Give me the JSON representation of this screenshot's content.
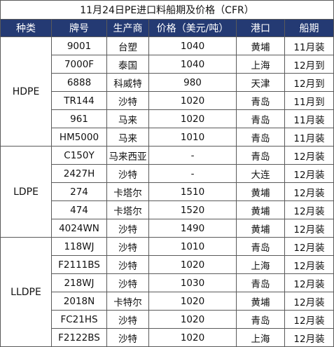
{
  "title": "11月24日PE进口料船期及价格（CFR）",
  "headers": [
    "种类",
    "牌号",
    "生产商",
    "价格（美元/吨）",
    "港口",
    "船期"
  ],
  "colors": {
    "header_bg": "#243a73",
    "header_text": "#ffffff",
    "border": "#5a5a5a"
  },
  "groups": [
    {
      "category": "HDPE",
      "rows": [
        {
          "grade": "9001",
          "producer": "台塑",
          "price": "1040",
          "port": "黄埔",
          "shipping": "11月装"
        },
        {
          "grade": "7000F",
          "producer": "泰国",
          "price": "1040",
          "port": "上海",
          "shipping": "12月到"
        },
        {
          "grade": "6888",
          "producer": "科威特",
          "price": "980",
          "port": "天津",
          "shipping": "12月到"
        },
        {
          "grade": "TR144",
          "producer": "沙特",
          "price": "1020",
          "port": "青岛",
          "shipping": "11月到"
        },
        {
          "grade": "961",
          "producer": "马来",
          "price": "1020",
          "port": "青岛",
          "shipping": "11月装"
        },
        {
          "grade": "HM5000",
          "producer": "马来",
          "price": "1010",
          "port": "青岛",
          "shipping": "11月装"
        }
      ]
    },
    {
      "category": "LDPE",
      "rows": [
        {
          "grade": "C150Y",
          "producer": "马来西亚",
          "price": "-",
          "port": "青岛",
          "shipping": "12月装"
        },
        {
          "grade": "2427H",
          "producer": "沙特",
          "price": "-",
          "port": "大连",
          "shipping": "12月装"
        },
        {
          "grade": "274",
          "producer": "卡塔尔",
          "price": "1510",
          "port": "黄埔",
          "shipping": "12月装"
        },
        {
          "grade": "474",
          "producer": "卡塔尔",
          "price": "1520",
          "port": "黄埔",
          "shipping": "12月装"
        },
        {
          "grade": "4024WN",
          "producer": "沙特",
          "price": "1490",
          "port": "黄埔",
          "shipping": "12月装"
        }
      ]
    },
    {
      "category": "LLDPE",
      "rows": [
        {
          "grade": "118WJ",
          "producer": "沙特",
          "price": "1010",
          "port": "青岛",
          "shipping": "12月装"
        },
        {
          "grade": "F2111BS",
          "producer": "沙特",
          "price": "1020",
          "port": "上海",
          "shipping": "12月装"
        },
        {
          "grade": "218WJ",
          "producer": "沙特",
          "price": "1030",
          "port": "青岛",
          "shipping": "12月装"
        },
        {
          "grade": "2018N",
          "producer": "卡特尔",
          "price": "1020",
          "port": "黄埔",
          "shipping": "12月装"
        },
        {
          "grade": "FC21HS",
          "producer": "沙特",
          "price": "1020",
          "port": "青岛",
          "shipping": "12月装"
        },
        {
          "grade": "F2122BS",
          "producer": "沙特",
          "price": "1020",
          "port": "上海",
          "shipping": "12月装"
        }
      ]
    }
  ]
}
